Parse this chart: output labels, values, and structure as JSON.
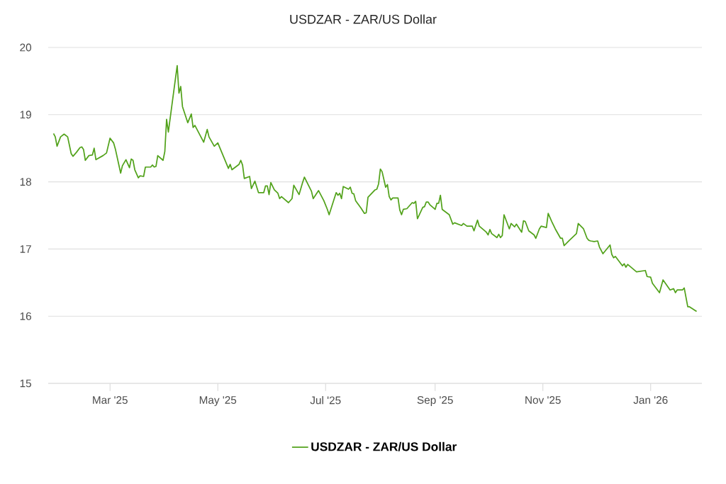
{
  "chart_data": {
    "type": "line",
    "title": "USDZAR - ZAR/US Dollar",
    "x": [
      "2025-01-28",
      "2025-01-29",
      "2025-01-30",
      "2025-02-01",
      "2025-02-03",
      "2025-02-05",
      "2025-02-07",
      "2025-02-08",
      "2025-02-10",
      "2025-02-12",
      "2025-02-13",
      "2025-02-14",
      "2025-02-15",
      "2025-02-17",
      "2025-02-19",
      "2025-02-20",
      "2025-02-21",
      "2025-02-25",
      "2025-02-27",
      "2025-03-01",
      "2025-03-03",
      "2025-03-04",
      "2025-03-07",
      "2025-03-08",
      "2025-03-10",
      "2025-03-12",
      "2025-03-13",
      "2025-03-14",
      "2025-03-15",
      "2025-03-17",
      "2025-03-18",
      "2025-03-20",
      "2025-03-21",
      "2025-03-24",
      "2025-03-25",
      "2025-03-26",
      "2025-03-27",
      "2025-03-28",
      "2025-03-31",
      "2025-04-01",
      "2025-04-02",
      "2025-04-03",
      "2025-04-05",
      "2025-04-08",
      "2025-04-09",
      "2025-04-10",
      "2025-04-11",
      "2025-04-14",
      "2025-04-16",
      "2025-04-17",
      "2025-04-18",
      "2025-04-23",
      "2025-04-25",
      "2025-04-26",
      "2025-04-29",
      "2025-05-01",
      "2025-05-07",
      "2025-05-08",
      "2025-05-09",
      "2025-05-13",
      "2025-05-14",
      "2025-05-15",
      "2025-05-16",
      "2025-05-19",
      "2025-05-20",
      "2025-05-22",
      "2025-05-24",
      "2025-05-27",
      "2025-05-28",
      "2025-05-29",
      "2025-05-30",
      "2025-05-31",
      "2025-06-02",
      "2025-06-04",
      "2025-06-05",
      "2025-06-06",
      "2025-06-10",
      "2025-06-12",
      "2025-06-13",
      "2025-06-16",
      "2025-06-18",
      "2025-06-19",
      "2025-06-23",
      "2025-06-24",
      "2025-06-27",
      "2025-06-30",
      "2025-07-02",
      "2025-07-03",
      "2025-07-07",
      "2025-07-08",
      "2025-07-09",
      "2025-07-10",
      "2025-07-11",
      "2025-07-14",
      "2025-07-15",
      "2025-07-16",
      "2025-07-17",
      "2025-07-18",
      "2025-07-21",
      "2025-07-23",
      "2025-07-24",
      "2025-07-25",
      "2025-07-29",
      "2025-07-30",
      "2025-07-31",
      "2025-08-01",
      "2025-08-02",
      "2025-08-04",
      "2025-08-05",
      "2025-08-06",
      "2025-08-07",
      "2025-08-08",
      "2025-08-11",
      "2025-08-12",
      "2025-08-13",
      "2025-08-14",
      "2025-08-16",
      "2025-08-19",
      "2025-08-20",
      "2025-08-21",
      "2025-08-22",
      "2025-08-25",
      "2025-08-26",
      "2025-08-27",
      "2025-08-28",
      "2025-08-29",
      "2025-09-01",
      "2025-09-02",
      "2025-09-03",
      "2025-09-04",
      "2025-09-05",
      "2025-09-09",
      "2025-09-11",
      "2025-09-12",
      "2025-09-16",
      "2025-09-17",
      "2025-09-19",
      "2025-09-22",
      "2025-09-23",
      "2025-09-25",
      "2025-09-26",
      "2025-09-30",
      "2025-10-01",
      "2025-10-02",
      "2025-10-03",
      "2025-10-06",
      "2025-10-07",
      "2025-10-08",
      "2025-10-09",
      "2025-10-10",
      "2025-10-13",
      "2025-10-14",
      "2025-10-16",
      "2025-10-17",
      "2025-10-20",
      "2025-10-21",
      "2025-10-22",
      "2025-10-24",
      "2025-10-27",
      "2025-10-28",
      "2025-10-30",
      "2025-10-31",
      "2025-11-03",
      "2025-11-04",
      "2025-11-06",
      "2025-11-08",
      "2025-11-11",
      "2025-11-12",
      "2025-11-13",
      "2025-11-16",
      "2025-11-20",
      "2025-11-21",
      "2025-11-24",
      "2025-11-26",
      "2025-11-27",
      "2025-11-28",
      "2025-11-30",
      "2025-12-02",
      "2025-12-03",
      "2025-12-05",
      "2025-12-09",
      "2025-12-10",
      "2025-12-11",
      "2025-12-12",
      "2025-12-16",
      "2025-12-17",
      "2025-12-18",
      "2025-12-19",
      "2025-12-24",
      "2025-12-29",
      "2025-12-30",
      "2026-01-01",
      "2026-01-02",
      "2026-01-06",
      "2026-01-08",
      "2026-01-12",
      "2026-01-14",
      "2026-01-15",
      "2026-01-16",
      "2026-01-19",
      "2026-01-20",
      "2026-01-22",
      "2026-01-23",
      "2026-01-27"
    ],
    "series": [
      {
        "name": "USDZAR - ZAR/US Dollar",
        "color": "#52a21b",
        "values": [
          18.72,
          18.67,
          18.53,
          18.67,
          18.71,
          18.67,
          18.42,
          18.38,
          18.44,
          18.51,
          18.52,
          18.48,
          18.32,
          18.39,
          18.4,
          18.5,
          18.33,
          18.39,
          18.43,
          18.65,
          18.58,
          18.49,
          18.13,
          18.24,
          18.33,
          18.21,
          18.34,
          18.32,
          18.18,
          18.06,
          18.09,
          18.08,
          18.22,
          18.22,
          18.25,
          18.22,
          18.23,
          18.39,
          18.32,
          18.45,
          18.93,
          18.74,
          19.14,
          19.73,
          19.32,
          19.42,
          19.12,
          18.88,
          19.01,
          18.81,
          18.84,
          18.59,
          18.78,
          18.67,
          18.53,
          18.58,
          18.2,
          18.26,
          18.18,
          18.26,
          18.32,
          18.25,
          18.05,
          18.08,
          17.9,
          18.01,
          17.84,
          17.84,
          17.94,
          17.94,
          17.81,
          17.99,
          17.88,
          17.83,
          17.75,
          17.78,
          17.69,
          17.75,
          17.95,
          17.81,
          17.99,
          18.07,
          17.86,
          17.75,
          17.87,
          17.72,
          17.59,
          17.51,
          17.84,
          17.8,
          17.83,
          17.75,
          17.93,
          17.89,
          17.92,
          17.83,
          17.82,
          17.72,
          17.61,
          17.53,
          17.54,
          17.77,
          17.88,
          17.89,
          17.97,
          18.19,
          18.15,
          17.92,
          17.96,
          17.78,
          17.73,
          17.76,
          17.76,
          17.58,
          17.51,
          17.59,
          17.6,
          17.69,
          17.68,
          17.71,
          17.45,
          17.62,
          17.63,
          17.7,
          17.7,
          17.66,
          17.59,
          17.68,
          17.68,
          17.8,
          17.59,
          17.51,
          17.37,
          17.39,
          17.35,
          17.38,
          17.34,
          17.34,
          17.27,
          17.43,
          17.34,
          17.25,
          17.21,
          17.29,
          17.23,
          17.17,
          17.22,
          17.17,
          17.2,
          17.51,
          17.3,
          17.38,
          17.33,
          17.37,
          17.25,
          17.42,
          17.41,
          17.27,
          17.21,
          17.16,
          17.3,
          17.34,
          17.32,
          17.53,
          17.41,
          17.3,
          17.16,
          17.16,
          17.05,
          17.13,
          17.23,
          17.38,
          17.3,
          17.16,
          17.13,
          17.12,
          17.11,
          17.12,
          17.03,
          16.93,
          17.06,
          16.92,
          16.87,
          16.89,
          16.75,
          16.78,
          16.73,
          16.77,
          16.66,
          16.68,
          16.59,
          16.58,
          16.49,
          16.35,
          16.54,
          16.39,
          16.41,
          16.35,
          16.39,
          16.39,
          16.42,
          16.14,
          16.14,
          16.07
        ]
      }
    ],
    "xlim": [
      "2025-01-25",
      "2026-01-30"
    ],
    "xticks": [
      {
        "value": "2025-03-01",
        "label": "Mar '25"
      },
      {
        "value": "2025-05-01",
        "label": "May '25"
      },
      {
        "value": "2025-07-01",
        "label": "Jul '25"
      },
      {
        "value": "2025-09-01",
        "label": "Sep '25"
      },
      {
        "value": "2025-11-01",
        "label": "Nov '25"
      },
      {
        "value": "2026-01-01",
        "label": "Jan '26"
      }
    ],
    "ylim": [
      15,
      20
    ],
    "yticks": [
      15,
      16,
      17,
      18,
      19,
      20
    ],
    "grid": "y",
    "legend": "bottom"
  }
}
